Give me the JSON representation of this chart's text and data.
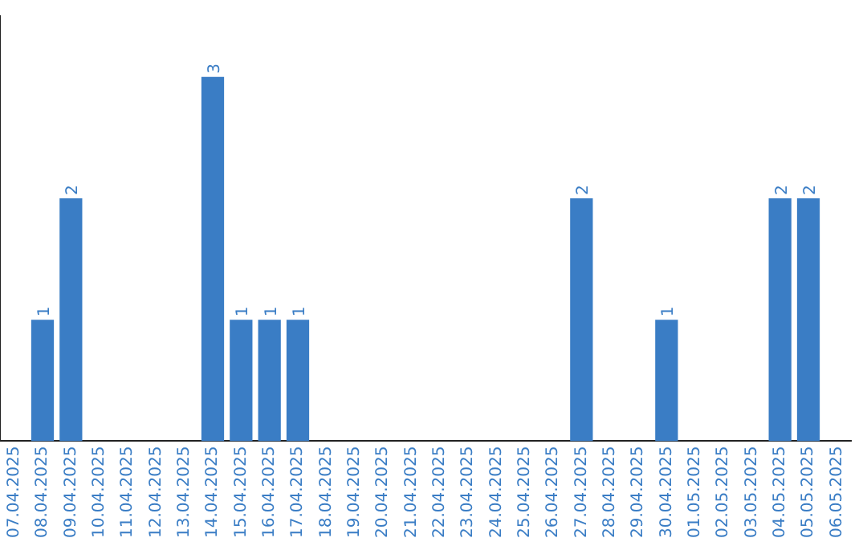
{
  "chart_data": {
    "type": "bar",
    "categories": [
      "07.04.2025",
      "08.04.2025",
      "09.04.2025",
      "10.04.2025",
      "11.04.2025",
      "12.04.2025",
      "13.04.2025",
      "14.04.2025",
      "15.04.2025",
      "16.04.2025",
      "17.04.2025",
      "18.04.2025",
      "19.04.2025",
      "20.04.2025",
      "21.04.2025",
      "22.04.2025",
      "23.04.2025",
      "24.04.2025",
      "25.04.2025",
      "26.04.2025",
      "27.04.2025",
      "28.04.2025",
      "29.04.2025",
      "30.04.2025",
      "01.05.2025",
      "02.05.2025",
      "03.05.2025",
      "04.05.2025",
      "05.05.2025",
      "06.05.2025"
    ],
    "values": [
      0,
      1,
      2,
      0,
      0,
      0,
      0,
      3,
      1,
      1,
      1,
      0,
      0,
      0,
      0,
      0,
      0,
      0,
      0,
      0,
      2,
      0,
      0,
      1,
      0,
      0,
      0,
      2,
      2,
      0
    ],
    "value_labels": [
      null,
      "1",
      "2",
      null,
      null,
      null,
      null,
      "3",
      "1",
      "1",
      "1",
      null,
      null,
      null,
      null,
      null,
      null,
      null,
      null,
      null,
      "2",
      null,
      null,
      "1",
      null,
      null,
      null,
      "2",
      "2",
      null
    ],
    "color": "#3a7dc5",
    "grid": false,
    "legend": false,
    "tick_labels": "x"
  }
}
